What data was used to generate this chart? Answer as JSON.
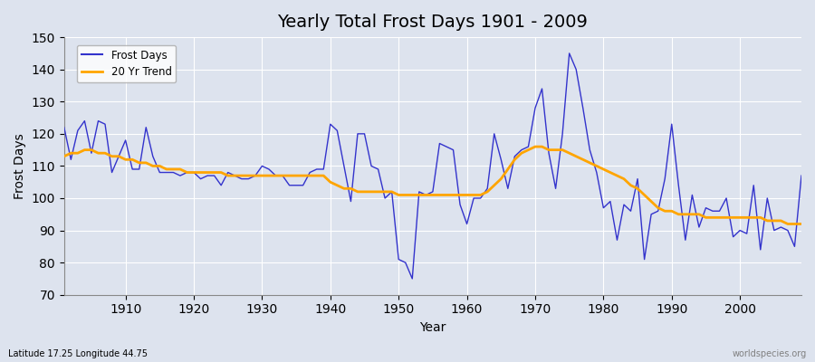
{
  "title": "Yearly Total Frost Days 1901 - 2009",
  "xlabel": "Year",
  "ylabel": "Frost Days",
  "subtitle": "Latitude 17.25 Longitude 44.75",
  "watermark": "worldspecies.org",
  "ylim": [
    70,
    150
  ],
  "yticks": [
    70,
    80,
    90,
    100,
    110,
    120,
    130,
    140,
    150
  ],
  "xlim": [
    1901,
    2009
  ],
  "xticks": [
    1910,
    1920,
    1930,
    1940,
    1950,
    1960,
    1970,
    1980,
    1990,
    2000
  ],
  "frost_color": "#3333cc",
  "trend_color": "#ffa500",
  "bg_color": "#dde3ee",
  "years": [
    1901,
    1902,
    1903,
    1904,
    1905,
    1906,
    1907,
    1908,
    1909,
    1910,
    1911,
    1912,
    1913,
    1914,
    1915,
    1916,
    1917,
    1918,
    1919,
    1920,
    1921,
    1922,
    1923,
    1924,
    1925,
    1926,
    1927,
    1928,
    1929,
    1930,
    1931,
    1932,
    1933,
    1934,
    1935,
    1936,
    1937,
    1938,
    1939,
    1940,
    1941,
    1942,
    1943,
    1944,
    1945,
    1946,
    1947,
    1948,
    1949,
    1950,
    1951,
    1952,
    1953,
    1954,
    1955,
    1956,
    1957,
    1958,
    1959,
    1960,
    1961,
    1962,
    1963,
    1964,
    1965,
    1966,
    1967,
    1968,
    1969,
    1970,
    1971,
    1972,
    1973,
    1974,
    1975,
    1976,
    1977,
    1978,
    1979,
    1980,
    1981,
    1982,
    1983,
    1984,
    1985,
    1986,
    1987,
    1988,
    1989,
    1990,
    1991,
    1992,
    1993,
    1994,
    1995,
    1996,
    1997,
    1998,
    1999,
    2000,
    2001,
    2002,
    2003,
    2004,
    2005,
    2006,
    2007,
    2008,
    2009
  ],
  "frost_days": [
    122,
    112,
    121,
    124,
    114,
    124,
    123,
    108,
    113,
    118,
    109,
    109,
    122,
    113,
    108,
    108,
    108,
    107,
    108,
    108,
    106,
    107,
    107,
    104,
    108,
    107,
    106,
    106,
    107,
    110,
    109,
    107,
    107,
    104,
    104,
    104,
    108,
    109,
    109,
    123,
    121,
    110,
    99,
    120,
    120,
    110,
    109,
    100,
    102,
    81,
    80,
    75,
    102,
    101,
    102,
    117,
    116,
    115,
    98,
    92,
    100,
    100,
    103,
    120,
    112,
    103,
    113,
    115,
    116,
    128,
    134,
    114,
    103,
    120,
    145,
    140,
    128,
    115,
    108,
    97,
    99,
    87,
    98,
    96,
    106,
    81,
    95,
    96,
    106,
    123,
    104,
    87,
    101,
    91,
    97,
    96,
    96,
    100,
    88,
    90,
    89,
    104,
    84,
    100,
    90,
    91,
    90,
    85,
    107
  ],
  "trend_values": [
    113,
    114,
    114,
    115,
    115,
    114,
    114,
    113,
    113,
    112,
    112,
    111,
    111,
    110,
    110,
    109,
    109,
    109,
    108,
    108,
    108,
    108,
    108,
    108,
    107,
    107,
    107,
    107,
    107,
    107,
    107,
    107,
    107,
    107,
    107,
    107,
    107,
    107,
    107,
    105,
    104,
    103,
    103,
    102,
    102,
    102,
    102,
    102,
    102,
    101,
    101,
    101,
    101,
    101,
    101,
    101,
    101,
    101,
    101,
    101,
    101,
    101,
    102,
    104,
    106,
    109,
    112,
    114,
    115,
    116,
    116,
    115,
    115,
    115,
    114,
    113,
    112,
    111,
    110,
    109,
    108,
    107,
    106,
    104,
    103,
    101,
    99,
    97,
    96,
    96,
    95,
    95,
    95,
    95,
    94,
    94,
    94,
    94,
    94,
    94,
    94,
    94,
    94,
    93,
    93,
    93,
    92,
    92,
    92
  ]
}
